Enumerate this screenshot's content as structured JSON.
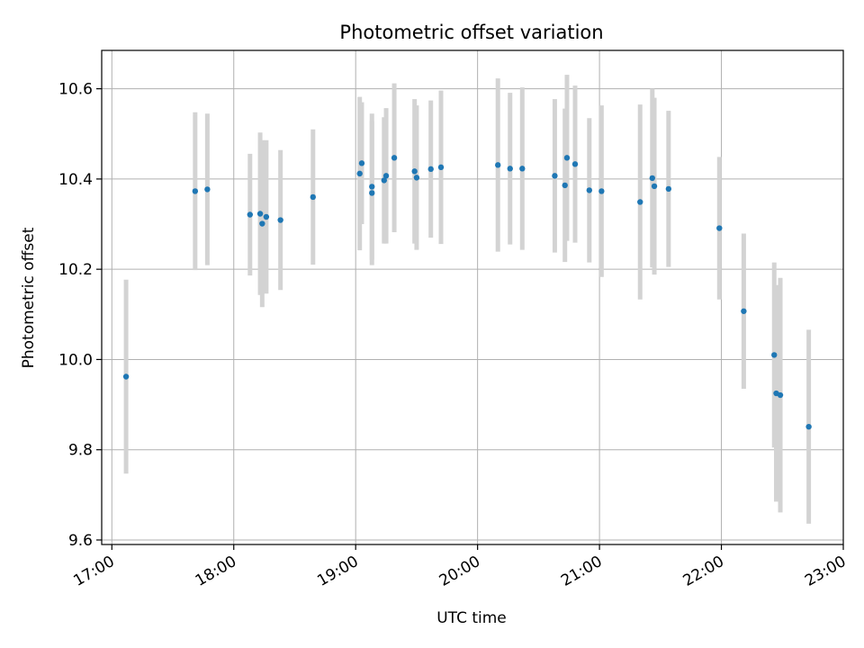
{
  "chart_data": {
    "type": "scatter",
    "title": "Photometric offset variation",
    "xlabel": "UTC time",
    "ylabel": "Photometric offset",
    "x_is_time": true,
    "xlim": [
      "16:55",
      "23:00"
    ],
    "ylim": [
      9.59,
      10.685
    ],
    "xticks": [
      "17:00",
      "18:00",
      "19:00",
      "20:00",
      "21:00",
      "22:00",
      "23:00"
    ],
    "yticks": [
      9.6,
      9.8,
      10.0,
      10.2,
      10.4,
      10.6
    ],
    "ytick_labels": [
      "9.6",
      "9.8",
      "10.0",
      "10.2",
      "10.4",
      "10.6"
    ],
    "grid": true,
    "colors": {
      "marker": "#1f77b4",
      "errorbar": "#d3d3d3",
      "grid": "#b0b0b0"
    },
    "series": [
      {
        "points": [
          {
            "x": "17:07",
            "y": 9.962,
            "err": 0.215
          },
          {
            "x": "17:41",
            "y": 10.373,
            "err": 0.175
          },
          {
            "x": "17:47",
            "y": 10.377,
            "err": 0.168
          },
          {
            "x": "18:08",
            "y": 10.321,
            "err": 0.135
          },
          {
            "x": "18:13",
            "y": 10.323,
            "err": 0.18
          },
          {
            "x": "18:14",
            "y": 10.301,
            "err": 0.185
          },
          {
            "x": "18:16",
            "y": 10.316,
            "err": 0.17
          },
          {
            "x": "18:23",
            "y": 10.309,
            "err": 0.155
          },
          {
            "x": "18:39",
            "y": 10.36,
            "err": 0.15
          },
          {
            "x": "19:02",
            "y": 10.412,
            "err": 0.17
          },
          {
            "x": "19:03",
            "y": 10.435,
            "err": 0.135
          },
          {
            "x": "19:08",
            "y": 10.383,
            "err": 0.162
          },
          {
            "x": "19:08",
            "y": 10.369,
            "err": 0.16
          },
          {
            "x": "19:14",
            "y": 10.397,
            "err": 0.14
          },
          {
            "x": "19:15",
            "y": 10.407,
            "err": 0.15
          },
          {
            "x": "19:19",
            "y": 10.447,
            "err": 0.165
          },
          {
            "x": "19:29",
            "y": 10.417,
            "err": 0.16
          },
          {
            "x": "19:30",
            "y": 10.403,
            "err": 0.16
          },
          {
            "x": "19:37",
            "y": 10.422,
            "err": 0.152
          },
          {
            "x": "19:42",
            "y": 10.426,
            "err": 0.17
          },
          {
            "x": "20:10",
            "y": 10.431,
            "err": 0.192
          },
          {
            "x": "20:16",
            "y": 10.423,
            "err": 0.168
          },
          {
            "x": "20:22",
            "y": 10.423,
            "err": 0.18
          },
          {
            "x": "20:38",
            "y": 10.407,
            "err": 0.17
          },
          {
            "x": "20:43",
            "y": 10.386,
            "err": 0.17
          },
          {
            "x": "20:44",
            "y": 10.447,
            "err": 0.184
          },
          {
            "x": "20:48",
            "y": 10.433,
            "err": 0.174
          },
          {
            "x": "20:55",
            "y": 10.375,
            "err": 0.16
          },
          {
            "x": "21:01",
            "y": 10.373,
            "err": 0.19
          },
          {
            "x": "21:20",
            "y": 10.349,
            "err": 0.216
          },
          {
            "x": "21:26",
            "y": 10.402,
            "err": 0.198
          },
          {
            "x": "21:27",
            "y": 10.384,
            "err": 0.196
          },
          {
            "x": "21:34",
            "y": 10.378,
            "err": 0.173
          },
          {
            "x": "21:59",
            "y": 10.291,
            "err": 0.158
          },
          {
            "x": "22:11",
            "y": 10.107,
            "err": 0.172
          },
          {
            "x": "22:26",
            "y": 10.01,
            "err": 0.205
          },
          {
            "x": "22:27",
            "y": 9.925,
            "err": 0.24
          },
          {
            "x": "22:29",
            "y": 9.921,
            "err": 0.26
          },
          {
            "x": "22:43",
            "y": 9.851,
            "err": 0.215
          }
        ]
      }
    ]
  }
}
